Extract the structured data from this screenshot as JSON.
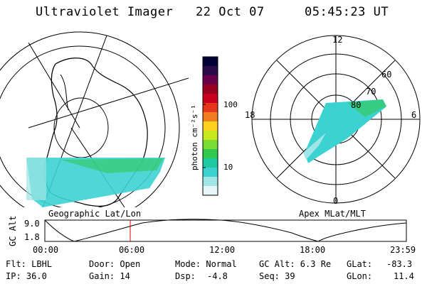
{
  "header": {
    "instrument": "Ultraviolet Imager",
    "date": "22 Oct 07",
    "time": "05:45:23 UT"
  },
  "colorbar": {
    "unit_label": "photon cm⁻²s⁻¹",
    "ticks": [
      "100",
      "10"
    ],
    "colors": [
      "#000033",
      "#2a0a4a",
      "#6a004a",
      "#9a0022",
      "#c8001e",
      "#e8361e",
      "#f07d1e",
      "#ffd21e",
      "#c8e81e",
      "#78dc32",
      "#32c850",
      "#1ec8a0",
      "#3cd2d2",
      "#a0e6e6",
      "#e6f5f5"
    ]
  },
  "left_map": {
    "label": "Geographic Lat/Lon",
    "aurora_color": "#3cd2d2"
  },
  "right_map": {
    "label": "Apex MLat/MLT",
    "mlt_labels": [
      "12",
      "18",
      "6",
      "0"
    ],
    "mlat_labels": [
      "60",
      "70",
      "80"
    ]
  },
  "altitude_plot": {
    "ylabel": "GC Alt",
    "ytick_labels": [
      "9.0",
      "1.8"
    ],
    "xtick_labels": [
      "00:00",
      "06:00",
      "12:00",
      "18:00",
      "23:59"
    ],
    "marker_color": "#e00000"
  },
  "footer": {
    "flt": "Flt: LBHL",
    "ip": "IP: 36.0",
    "door": "Door: Open",
    "gain": "Gain: 14",
    "mode": "Mode: Normal",
    "dsp_label": "Dsp:",
    "dsp_value": "-4.8",
    "gc_alt": "GC Alt: 6.3 Re",
    "seq": "Seq: 39",
    "glat_label": "GLat:",
    "glat_value": "-83.3",
    "glon_label": "GLon:",
    "glon_value": "11.4"
  }
}
